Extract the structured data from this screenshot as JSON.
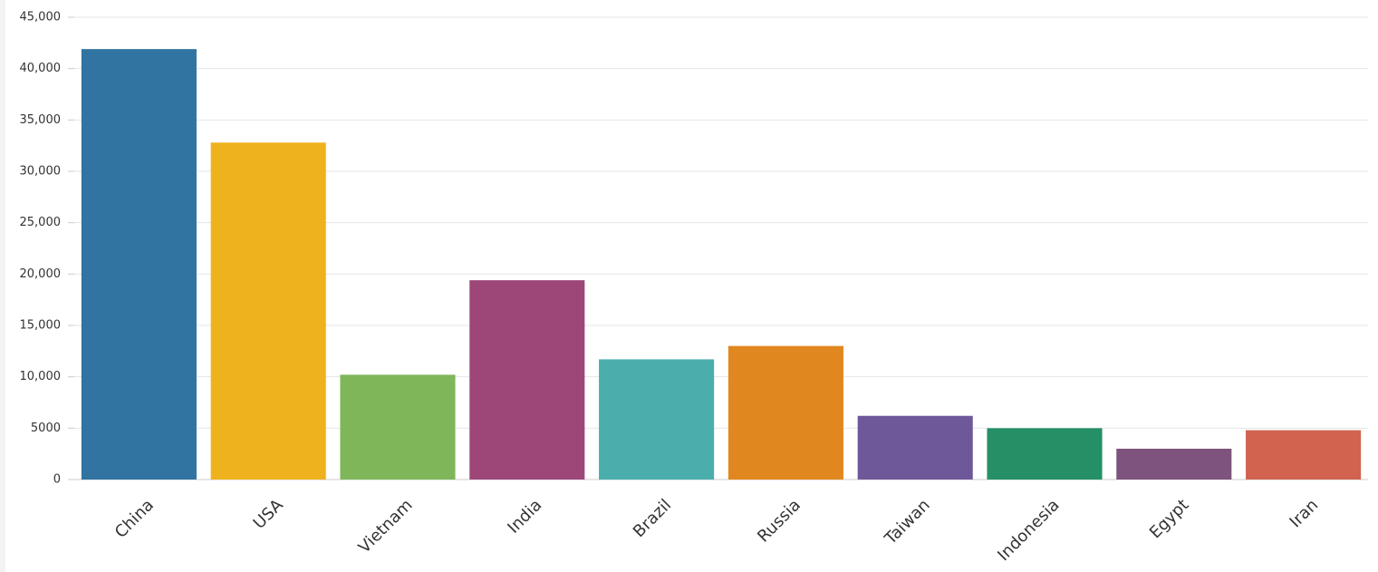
{
  "chart_data": {
    "type": "bar",
    "categories": [
      "China",
      "USA",
      "Vietnam",
      "India",
      "Brazil",
      "Russia",
      "Taiwan",
      "Indonesia",
      "Egypt",
      "Iran"
    ],
    "values": [
      41900,
      32800,
      10200,
      19400,
      11700,
      13000,
      6200,
      5000,
      3000,
      4800
    ],
    "colors": [
      "#3274a1",
      "#efb21f",
      "#7fb65a",
      "#9d4779",
      "#4aaead",
      "#e1871f",
      "#6e5899",
      "#258f66",
      "#7e537d",
      "#d1634f"
    ],
    "ylim": [
      0,
      45000
    ],
    "yticks": [
      0,
      5000,
      {
        "value": 10000,
        "label": "10,000"
      },
      {
        "value": 15000,
        "label": "15,000"
      },
      {
        "value": 20000,
        "label": "20,000"
      },
      {
        "value": 25000,
        "label": "25,000"
      },
      {
        "value": 30000,
        "label": "30,000"
      },
      {
        "value": 35000,
        "label": "35,000"
      },
      {
        "value": 40000,
        "label": "40,000"
      },
      {
        "value": 45000,
        "label": "45,000"
      }
    ],
    "grid": true
  }
}
